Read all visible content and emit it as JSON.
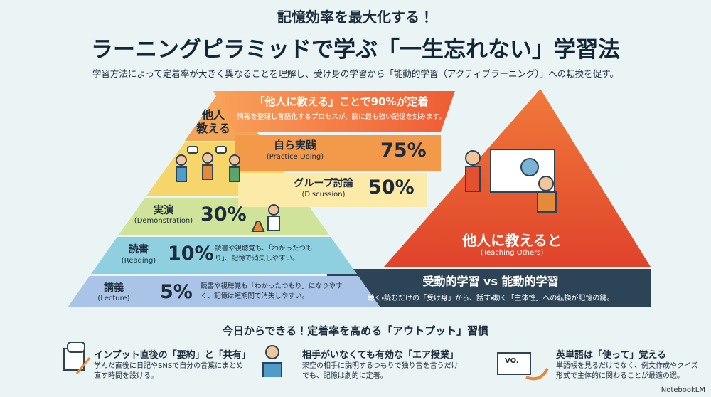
{
  "header": {
    "kicker": "記憶効率を最大化する！",
    "title": "ラーニングピラミッドで学ぶ「一生忘れない」学習法",
    "description": "学習方法によって定着率が大きく異なることを理解し、受け身の学習から「能動的学習（アクティブラーニング）」への転換を促す。"
  },
  "pyramid": {
    "top": {
      "label": "他人\n教える",
      "headline": "「他人に教える」ことで90%が定着",
      "detail": "情報を整理し言語化するプロセスが、脳に最も強い記憶を刻みます。"
    },
    "levels": [
      {
        "name": "自ら実践",
        "english": "(Practice Doing)",
        "rate": "75%"
      },
      {
        "name": "グループ討論",
        "english": "(Discussion)",
        "rate": "50%"
      },
      {
        "name": "実演",
        "english": "(Demonstration)",
        "rate": "30%"
      },
      {
        "name": "読書",
        "english": "(Reading)",
        "rate": "10%",
        "note": "読書や視聴覚も、「わかったつもり」、記憶で消失しやすい。"
      },
      {
        "name": "講義",
        "english": "(Lecture)",
        "rate": "5%",
        "note": "読書や視聴覚も「わかったつもり」になりやすく、記憶は短期間で消失しやすい。"
      }
    ]
  },
  "teaching": {
    "title": "他人に教えると",
    "english": "(Teaching Others)"
  },
  "contrast": {
    "title": "受動的学習 vs 能動的学習",
    "detail": "聴く・読むだけの「受け身」から、話す・動く「主体性」への転換が記憶の鍵。"
  },
  "habits": {
    "title": "今日からできる！定着率を高める「アウトプット」習慣",
    "items": [
      {
        "title": "インプット直後の「要約」と「共有」",
        "detail": "学んだ直後に日記やSNSで自分の言葉にまとめ直す時間を設ける。"
      },
      {
        "title": "相手がいなくても有効な「エア授業」",
        "detail": "架空の相手に説明するつもりで独り言を言うだけでも、記憶は劇的に定着。"
      },
      {
        "title": "英単語は「使って」覚える",
        "detail": "単語帳を見るだけでなく、例文作成やクイズ形式で主体的に関わることが最適の選。",
        "card": "VO."
      }
    ]
  },
  "footer": {
    "brand": "NotebookLM"
  }
}
